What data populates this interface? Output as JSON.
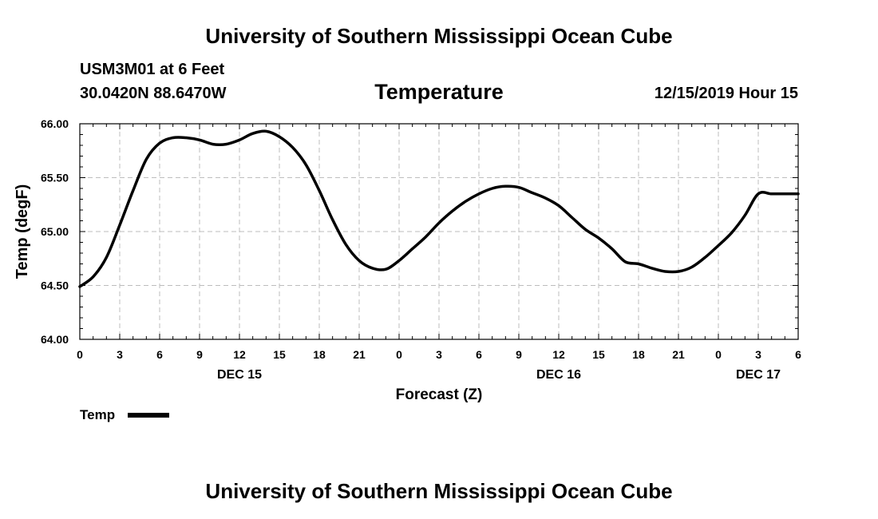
{
  "header": {
    "title": "University of Southern Mississippi Ocean Cube",
    "station": "USM3M01 at 6 Feet",
    "coords": "30.0420N 88.6470W",
    "datetime": "12/15/2019 Hour 15"
  },
  "footer": {
    "title": "University of Southern Mississippi Ocean Cube"
  },
  "colors": {
    "line": "#000000",
    "grid": "#bdbdbd"
  },
  "chart_data": {
    "type": "line",
    "title": "Temperature",
    "xlabel": "Forecast (Z)",
    "ylabel": "Temp (degF)",
    "ylim": [
      64.0,
      66.0
    ],
    "xlim_hours": [
      0,
      54
    ],
    "y_ticks": [
      "64.00",
      "64.50",
      "65.00",
      "65.50",
      "66.00"
    ],
    "x_ticks": [
      "0",
      "3",
      "6",
      "9",
      "12",
      "15",
      "18",
      "21",
      "0",
      "3",
      "6",
      "9",
      "12",
      "15",
      "18",
      "21",
      "0",
      "3",
      "6"
    ],
    "date_labels": [
      {
        "label": "DEC 15",
        "hour": 12
      },
      {
        "label": "DEC 16",
        "hour": 36
      },
      {
        "label": "DEC 17",
        "hour": 51
      }
    ],
    "grid": true,
    "legend": {
      "position": "bottom-left",
      "entries": [
        "Temp"
      ]
    },
    "series": [
      {
        "name": "Temp",
        "x": [
          0,
          1,
          2,
          3,
          4,
          5,
          6,
          7,
          8,
          9,
          10,
          11,
          12,
          13,
          14,
          15,
          16,
          17,
          18,
          19,
          20,
          21,
          22,
          23,
          24,
          25,
          26,
          27,
          28,
          29,
          30,
          31,
          32,
          33,
          34,
          35,
          36,
          37,
          38,
          39,
          40,
          41,
          42,
          43,
          44,
          45,
          46,
          47,
          48,
          49,
          50,
          51,
          52,
          53,
          54
        ],
        "values": [
          64.49,
          64.58,
          64.76,
          65.06,
          65.38,
          65.67,
          65.82,
          65.87,
          65.87,
          65.85,
          65.81,
          65.81,
          65.85,
          65.91,
          65.93,
          65.88,
          65.78,
          65.62,
          65.38,
          65.11,
          64.88,
          64.73,
          64.66,
          64.65,
          64.73,
          64.84,
          64.95,
          65.08,
          65.19,
          65.28,
          65.35,
          65.4,
          65.42,
          65.41,
          65.36,
          65.31,
          65.24,
          65.13,
          65.02,
          64.94,
          64.84,
          64.72,
          64.7,
          64.66,
          64.63,
          64.63,
          64.67,
          64.76,
          64.87,
          64.99,
          65.15,
          65.35,
          65.35,
          65.35,
          65.35
        ]
      }
    ]
  }
}
